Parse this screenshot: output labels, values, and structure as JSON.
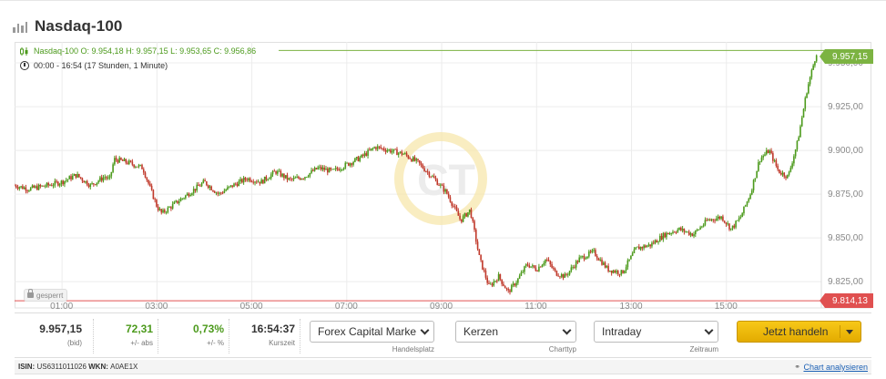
{
  "header": {
    "title": "Nasdaq-100",
    "icon": "bar-chart-icon"
  },
  "legend": {
    "ohlc_text": "Nasdaq-100  O: 9.954,18  H: 9.957,15  L: 9.953,65  C: 9.956,86",
    "range_text": "00:00 - 16:54   (17 Stunden, 1 Minute)",
    "locked_label": "gesperrt"
  },
  "price_tags": {
    "last": "9.957,15",
    "low": "9.814,13"
  },
  "chart_data": {
    "type": "line",
    "title": "Nasdaq-100",
    "x_ticks": [
      "01:00",
      "03:00",
      "05:00",
      "07:00",
      "09:00",
      "11:00",
      "13:00",
      "15:00"
    ],
    "y_ticks": [
      "9.950,00",
      "9.925,00",
      "9.900,00",
      "9.875,00",
      "9.850,00",
      "9.825,00"
    ],
    "ylim": [
      9810,
      9962
    ],
    "xlim_hours": [
      0.0,
      17.0
    ],
    "series": [
      {
        "x": [
          0.0,
          0.3,
          0.7,
          1.0,
          1.3,
          1.6,
          1.9,
          2.0,
          2.1,
          2.4,
          2.7,
          3.0,
          3.1,
          3.4,
          3.7,
          4.0,
          4.3,
          4.6,
          4.9,
          5.2,
          5.5,
          5.8,
          6.1,
          6.4,
          6.7,
          7.0,
          7.3,
          7.6,
          7.9,
          8.2,
          8.5,
          8.8,
          9.1,
          9.4,
          9.6,
          9.8,
          10.0,
          10.2,
          10.4,
          10.6,
          10.8,
          11.0,
          11.2,
          11.4,
          11.6,
          11.9,
          12.2,
          12.5,
          12.8,
          13.1,
          13.4,
          13.7,
          14.0,
          14.3,
          14.6,
          14.9,
          15.1,
          15.3,
          15.5,
          15.7,
          15.9,
          16.1,
          16.3,
          16.5,
          16.7,
          16.9
        ],
        "values": [
          9880,
          9878,
          9880,
          9882,
          9886,
          9880,
          9885,
          9883,
          9895,
          9893,
          9890,
          9868,
          9864,
          9870,
          9876,
          9882,
          9875,
          9880,
          9884,
          9882,
          9888,
          9883,
          9885,
          9890,
          9888,
          9892,
          9896,
          9902,
          9900,
          9898,
          9893,
          9885,
          9876,
          9860,
          9866,
          9838,
          9822,
          9828,
          9819,
          9826,
          9835,
          9832,
          9838,
          9830,
          9828,
          9838,
          9842,
          9832,
          9830,
          9844,
          9846,
          9852,
          9855,
          9852,
          9860,
          9862,
          9855,
          9862,
          9875,
          9895,
          9900,
          9888,
          9885,
          9905,
          9935,
          9956
        ]
      }
    ],
    "last_value": 9957.15,
    "low_value": 9814.13,
    "grid": true
  },
  "stats": [
    {
      "value": "9.957,15",
      "label": "(bid)",
      "color": "#333333"
    },
    {
      "value": "72,31",
      "label": "+/- abs",
      "color": "#4c9a1c"
    },
    {
      "value": "0,73%",
      "label": "+/- %",
      "color": "#4c9a1c"
    },
    {
      "value": "16:54:37",
      "label": "Kurszeit",
      "color": "#333333"
    }
  ],
  "selects": [
    {
      "value": "Forex Capital Marke",
      "label": "Handelsplatz"
    },
    {
      "value": "Kerzen",
      "label": "Charttyp"
    },
    {
      "value": "Intraday",
      "label": "Zeitraum"
    }
  ],
  "trade_button": {
    "label": "Jetzt handeln"
  },
  "footer": {
    "isin_label": "ISIN:",
    "isin": "US6311011026",
    "wkn_label": "WKN:",
    "wkn": "A0AE1X",
    "analyze_link": "Chart analysieren"
  },
  "colors": {
    "up": "#4c9a1c",
    "down": "#c0392b",
    "accent": "#f2b705",
    "last_line": "#7cb342",
    "low_line": "#e05050"
  }
}
